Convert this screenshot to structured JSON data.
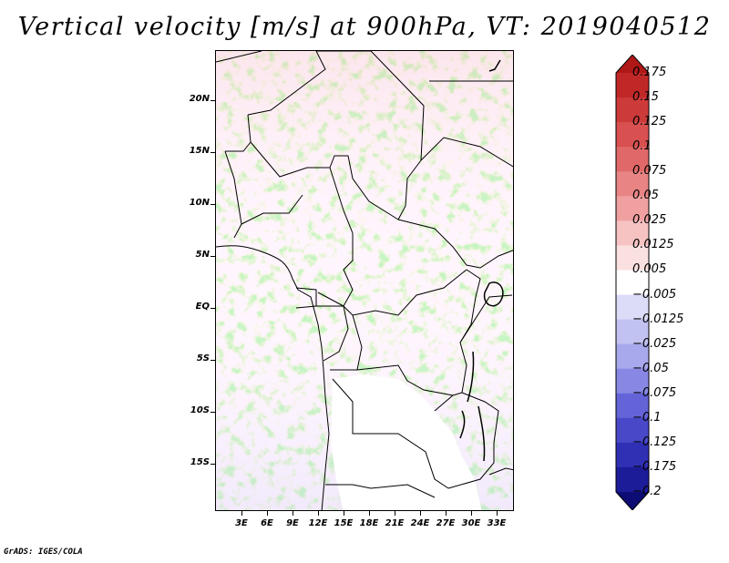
{
  "title": "Vertical velocity [m/s] at 900hPa, VT: 2019040512",
  "credit": "GrADS: IGES/COLA",
  "axes": {
    "lat_labels": [
      "20N",
      "15N",
      "10N",
      "5N",
      "EQ",
      "5S",
      "10S",
      "15S"
    ],
    "lon_labels": [
      "3E",
      "6E",
      "9E",
      "12E",
      "15E",
      "18E",
      "21E",
      "24E",
      "27E",
      "30E",
      "33E"
    ]
  },
  "colorbar": {
    "labels": [
      "0.175",
      "0.15",
      "0.125",
      "0.1",
      "0.075",
      "0.05",
      "0.025",
      "0.0125",
      "0.005",
      "−0.005",
      "−0.0125",
      "−0.025",
      "−0.05",
      "−0.075",
      "−0.1",
      "−0.125",
      "−0.175",
      "−0.2"
    ],
    "colors": [
      "#b01818",
      "#c02828",
      "#cc3a3a",
      "#d85050",
      "#e06868",
      "#e88484",
      "#f0a0a0",
      "#f6c2c2",
      "#fbe0e0",
      "#ffffff",
      "#dcdcf8",
      "#c2c2f2",
      "#a8a8ec",
      "#8888e4",
      "#6464d8",
      "#4848c8",
      "#3030b4",
      "#1c1c98",
      "#0c0c74"
    ]
  }
}
